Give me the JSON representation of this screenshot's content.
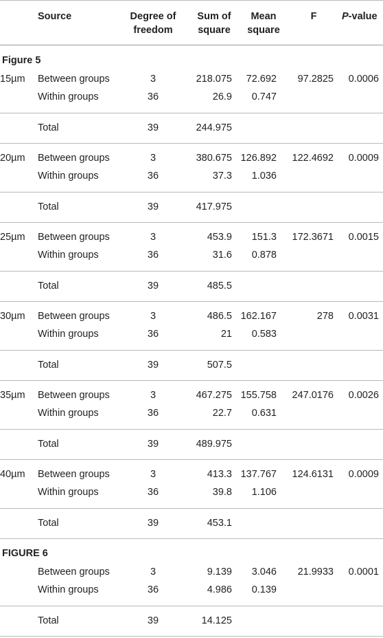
{
  "headers": {
    "source": "Source",
    "df_line1": "Degree of",
    "df_line2": "freedom",
    "ss_line1": "Sum of",
    "ss_line2": "square",
    "ms_line1": "Mean",
    "ms_line2": "square",
    "f": "F",
    "p_italic": "P",
    "p_rest": "-value"
  },
  "sections": [
    {
      "title": "Figure 5",
      "groups": [
        {
          "size": "15µm",
          "between": {
            "source": "Between groups",
            "df": "3",
            "ss": "218.075",
            "ms": "72.692",
            "f": "97.2825",
            "p": "0.0006"
          },
          "within": {
            "source": "Within groups",
            "df": "36",
            "ss": "26.9",
            "ms": "0.747"
          },
          "total": {
            "source": "Total",
            "df": "39",
            "ss": "244.975"
          }
        },
        {
          "size": "20µm",
          "between": {
            "source": "Between groups",
            "df": "3",
            "ss": "380.675",
            "ms": "126.892",
            "f": "122.4692",
            "p": "0.0009"
          },
          "within": {
            "source": "Within groups",
            "df": "36",
            "ss": "37.3",
            "ms": "1.036"
          },
          "total": {
            "source": "Total",
            "df": "39",
            "ss": "417.975"
          }
        },
        {
          "size": "25µm",
          "between": {
            "source": "Between groups",
            "df": "3",
            "ss": "453.9",
            "ms": "151.3",
            "f": "172.3671",
            "p": "0.0015"
          },
          "within": {
            "source": "Within groups",
            "df": "36",
            "ss": "31.6",
            "ms": "0.878"
          },
          "total": {
            "source": "Total",
            "df": "39",
            "ss": "485.5"
          }
        },
        {
          "size": "30µm",
          "between": {
            "source": "Between groups",
            "df": "3",
            "ss": "486.5",
            "ms": "162.167",
            "f": "278",
            "p": "0.0031"
          },
          "within": {
            "source": "Within groups",
            "df": "36",
            "ss": "21",
            "ms": "0.583"
          },
          "total": {
            "source": "Total",
            "df": "39",
            "ss": "507.5"
          }
        },
        {
          "size": "35µm",
          "between": {
            "source": "Between groups",
            "df": "3",
            "ss": "467.275",
            "ms": "155.758",
            "f": "247.0176",
            "p": "0.0026"
          },
          "within": {
            "source": "Within groups",
            "df": "36",
            "ss": "22.7",
            "ms": "0.631"
          },
          "total": {
            "source": "Total",
            "df": "39",
            "ss": "489.975"
          }
        },
        {
          "size": "40µm",
          "between": {
            "source": "Between groups",
            "df": "3",
            "ss": "413.3",
            "ms": "137.767",
            "f": "124.6131",
            "p": "0.0009"
          },
          "within": {
            "source": "Within groups",
            "df": "36",
            "ss": "39.8",
            "ms": "1.106"
          },
          "total": {
            "source": "Total",
            "df": "39",
            "ss": "453.1"
          }
        }
      ]
    },
    {
      "title": "FIGURE 6",
      "groups": [
        {
          "size": "",
          "between": {
            "source": "Between groups",
            "df": "3",
            "ss": "9.139",
            "ms": "3.046",
            "f": "21.9933",
            "p": "0.0001"
          },
          "within": {
            "source": "Within groups",
            "df": "36",
            "ss": "4.986",
            "ms": "0.139"
          },
          "total": {
            "source": "Total",
            "df": "39",
            "ss": "14.125"
          }
        }
      ]
    }
  ]
}
